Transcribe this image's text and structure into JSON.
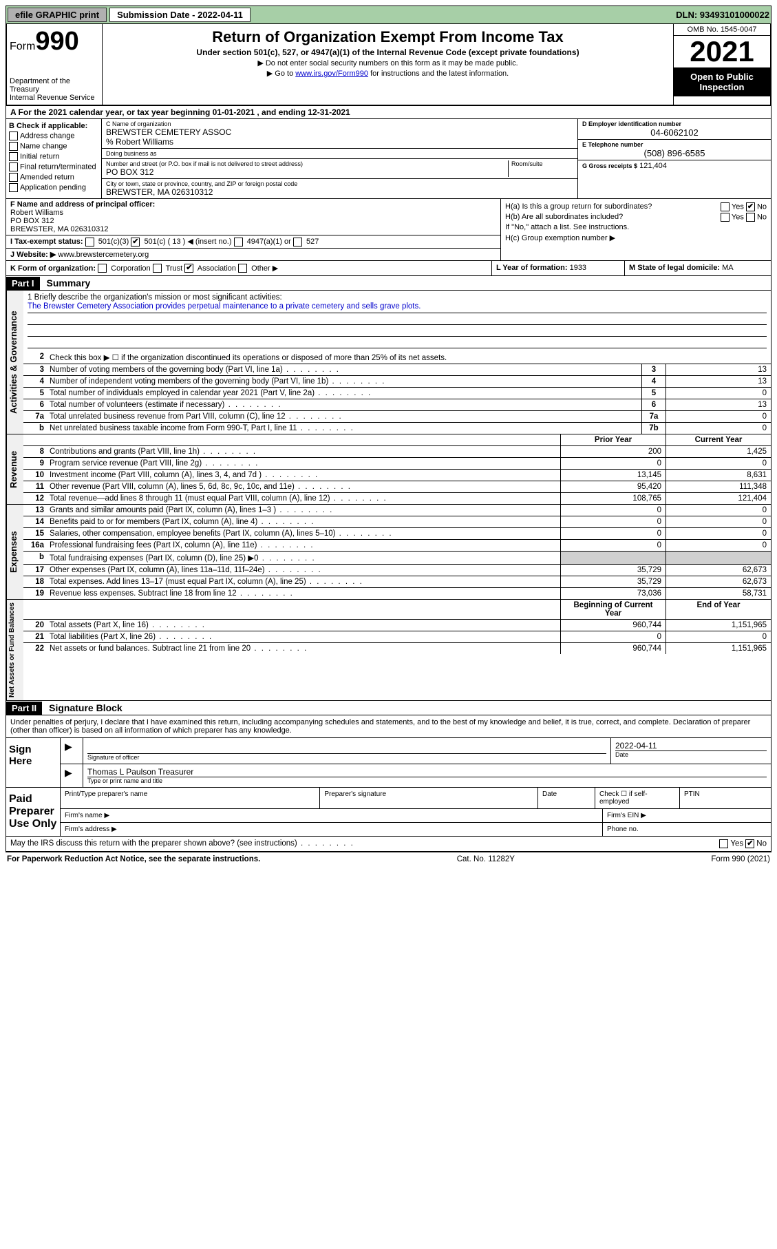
{
  "topbar": {
    "efile": "efile GRAPHIC print",
    "submission_label": "Submission Date - 2022-04-11",
    "dln": "DLN: 93493101000022"
  },
  "header": {
    "form_label": "Form",
    "form_number": "990",
    "dept": "Department of the Treasury",
    "irs": "Internal Revenue Service",
    "title": "Return of Organization Exempt From Income Tax",
    "subtitle": "Under section 501(c), 527, or 4947(a)(1) of the Internal Revenue Code (except private foundations)",
    "instr1": "▶ Do not enter social security numbers on this form as it may be made public.",
    "instr2_pre": "▶ Go to ",
    "instr2_link": "www.irs.gov/Form990",
    "instr2_post": " for instructions and the latest information.",
    "omb": "OMB No. 1545-0047",
    "year": "2021",
    "open": "Open to Public Inspection"
  },
  "line_a": "A For the 2021 calendar year, or tax year beginning 01-01-2021   , and ending 12-31-2021",
  "col_b": {
    "title": "B Check if applicable:",
    "items": [
      "Address change",
      "Name change",
      "Initial return",
      "Final return/terminated",
      "Amended return",
      "Application pending"
    ]
  },
  "col_c": {
    "name_label": "C Name of organization",
    "name": "BREWSTER CEMETERY ASSOC",
    "care_of": "% Robert Williams",
    "dba_label": "Doing business as",
    "addr_label": "Number and street (or P.O. box if mail is not delivered to street address)",
    "addr": "PO BOX 312",
    "room_label": "Room/suite",
    "city_label": "City or town, state or province, country, and ZIP or foreign postal code",
    "city": "BREWSTER, MA  026310312"
  },
  "col_d": {
    "ein_label": "D Employer identification number",
    "ein": "04-6062102",
    "phone_label": "E Telephone number",
    "phone": "(508) 896-6585",
    "gross_label": "G Gross receipts $",
    "gross": "121,404"
  },
  "section_f": {
    "label": "F Name and address of principal officer:",
    "name": "Robert Williams",
    "addr1": "PO BOX 312",
    "addr2": "BREWSTER, MA  026310312"
  },
  "section_h": {
    "ha": "H(a)  Is this a group return for subordinates?",
    "hb": "H(b)  Are all subordinates included?",
    "hb_note": "If \"No,\" attach a list. See instructions.",
    "hc": "H(c)  Group exemption number ▶"
  },
  "line_i": {
    "label": "I   Tax-exempt status:",
    "opts": [
      "501(c)(3)",
      "501(c) ( 13 ) ◀ (insert no.)",
      "4947(a)(1) or",
      "527"
    ]
  },
  "line_j": {
    "label": "J   Website: ▶",
    "val": "www.brewstercemetery.org"
  },
  "line_k": {
    "label": "K Form of organization:",
    "opts": [
      "Corporation",
      "Trust",
      "Association",
      "Other ▶"
    ],
    "l_label": "L Year of formation:",
    "l_val": "1933",
    "m_label": "M State of legal domicile:",
    "m_val": "MA"
  },
  "part1": {
    "label": "Part I",
    "title": "Summary"
  },
  "mission": {
    "q": "1   Briefly describe the organization's mission or most significant activities:",
    "text": "The Brewster Cemetery Association provides perpetual maintenance to a private cemetery and sells grave plots."
  },
  "gov_lines": [
    {
      "n": "2",
      "d": "Check this box ▶ ☐  if the organization discontinued its operations or disposed of more than 25% of its net assets."
    },
    {
      "n": "3",
      "d": "Number of voting members of the governing body (Part VI, line 1a)",
      "box": "3",
      "v": "13"
    },
    {
      "n": "4",
      "d": "Number of independent voting members of the governing body (Part VI, line 1b)",
      "box": "4",
      "v": "13"
    },
    {
      "n": "5",
      "d": "Total number of individuals employed in calendar year 2021 (Part V, line 2a)",
      "box": "5",
      "v": "0"
    },
    {
      "n": "6",
      "d": "Total number of volunteers (estimate if necessary)",
      "box": "6",
      "v": "13"
    },
    {
      "n": "7a",
      "d": "Total unrelated business revenue from Part VIII, column (C), line 12",
      "box": "7a",
      "v": "0"
    },
    {
      "n": "b",
      "d": "Net unrelated business taxable income from Form 990-T, Part I, line 11",
      "box": "7b",
      "v": "0"
    }
  ],
  "col_headers": {
    "prior": "Prior Year",
    "curr": "Current Year"
  },
  "rev_lines": [
    {
      "n": "8",
      "d": "Contributions and grants (Part VIII, line 1h)",
      "p": "200",
      "c": "1,425"
    },
    {
      "n": "9",
      "d": "Program service revenue (Part VIII, line 2g)",
      "p": "0",
      "c": "0"
    },
    {
      "n": "10",
      "d": "Investment income (Part VIII, column (A), lines 3, 4, and 7d )",
      "p": "13,145",
      "c": "8,631"
    },
    {
      "n": "11",
      "d": "Other revenue (Part VIII, column (A), lines 5, 6d, 8c, 9c, 10c, and 11e)",
      "p": "95,420",
      "c": "111,348"
    },
    {
      "n": "12",
      "d": "Total revenue—add lines 8 through 11 (must equal Part VIII, column (A), line 12)",
      "p": "108,765",
      "c": "121,404"
    }
  ],
  "exp_lines": [
    {
      "n": "13",
      "d": "Grants and similar amounts paid (Part IX, column (A), lines 1–3 )",
      "p": "0",
      "c": "0"
    },
    {
      "n": "14",
      "d": "Benefits paid to or for members (Part IX, column (A), line 4)",
      "p": "0",
      "c": "0"
    },
    {
      "n": "15",
      "d": "Salaries, other compensation, employee benefits (Part IX, column (A), lines 5–10)",
      "p": "0",
      "c": "0"
    },
    {
      "n": "16a",
      "d": "Professional fundraising fees (Part IX, column (A), line 11e)",
      "p": "0",
      "c": "0"
    },
    {
      "n": "b",
      "d": "Total fundraising expenses (Part IX, column (D), line 25) ▶0",
      "p": "",
      "c": "",
      "grey": true
    },
    {
      "n": "17",
      "d": "Other expenses (Part IX, column (A), lines 11a–11d, 11f–24e)",
      "p": "35,729",
      "c": "62,673"
    },
    {
      "n": "18",
      "d": "Total expenses. Add lines 13–17 (must equal Part IX, column (A), line 25)",
      "p": "35,729",
      "c": "62,673"
    },
    {
      "n": "19",
      "d": "Revenue less expenses. Subtract line 18 from line 12",
      "p": "73,036",
      "c": "58,731"
    }
  ],
  "na_headers": {
    "prior": "Beginning of Current Year",
    "curr": "End of Year"
  },
  "na_lines": [
    {
      "n": "20",
      "d": "Total assets (Part X, line 16)",
      "p": "960,744",
      "c": "1,151,965"
    },
    {
      "n": "21",
      "d": "Total liabilities (Part X, line 26)",
      "p": "0",
      "c": "0"
    },
    {
      "n": "22",
      "d": "Net assets or fund balances. Subtract line 21 from line 20",
      "p": "960,744",
      "c": "1,151,965"
    }
  ],
  "part2": {
    "label": "Part II",
    "title": "Signature Block"
  },
  "sig_penalty": "Under penalties of perjury, I declare that I have examined this return, including accompanying schedules and statements, and to the best of my knowledge and belief, it is true, correct, and complete. Declaration of preparer (other than officer) is based on all information of which preparer has any knowledge.",
  "sign_here": {
    "label": "Sign Here",
    "sig_label": "Signature of officer",
    "date": "2022-04-11",
    "date_label": "Date",
    "name": "Thomas L Paulson  Treasurer",
    "name_label": "Type or print name and title"
  },
  "paid_prep": {
    "label": "Paid Preparer Use Only",
    "r1": [
      "Print/Type preparer's name",
      "Preparer's signature",
      "Date",
      "Check ☐ if self-employed",
      "PTIN"
    ],
    "r2l": "Firm's name   ▶",
    "r2r": "Firm's EIN ▶",
    "r3l": "Firm's address ▶",
    "r3r": "Phone no."
  },
  "may_irs": "May the IRS discuss this return with the preparer shown above? (see instructions)",
  "footer": {
    "l": "For Paperwork Reduction Act Notice, see the separate instructions.",
    "c": "Cat. No. 11282Y",
    "r": "Form 990 (2021)"
  }
}
